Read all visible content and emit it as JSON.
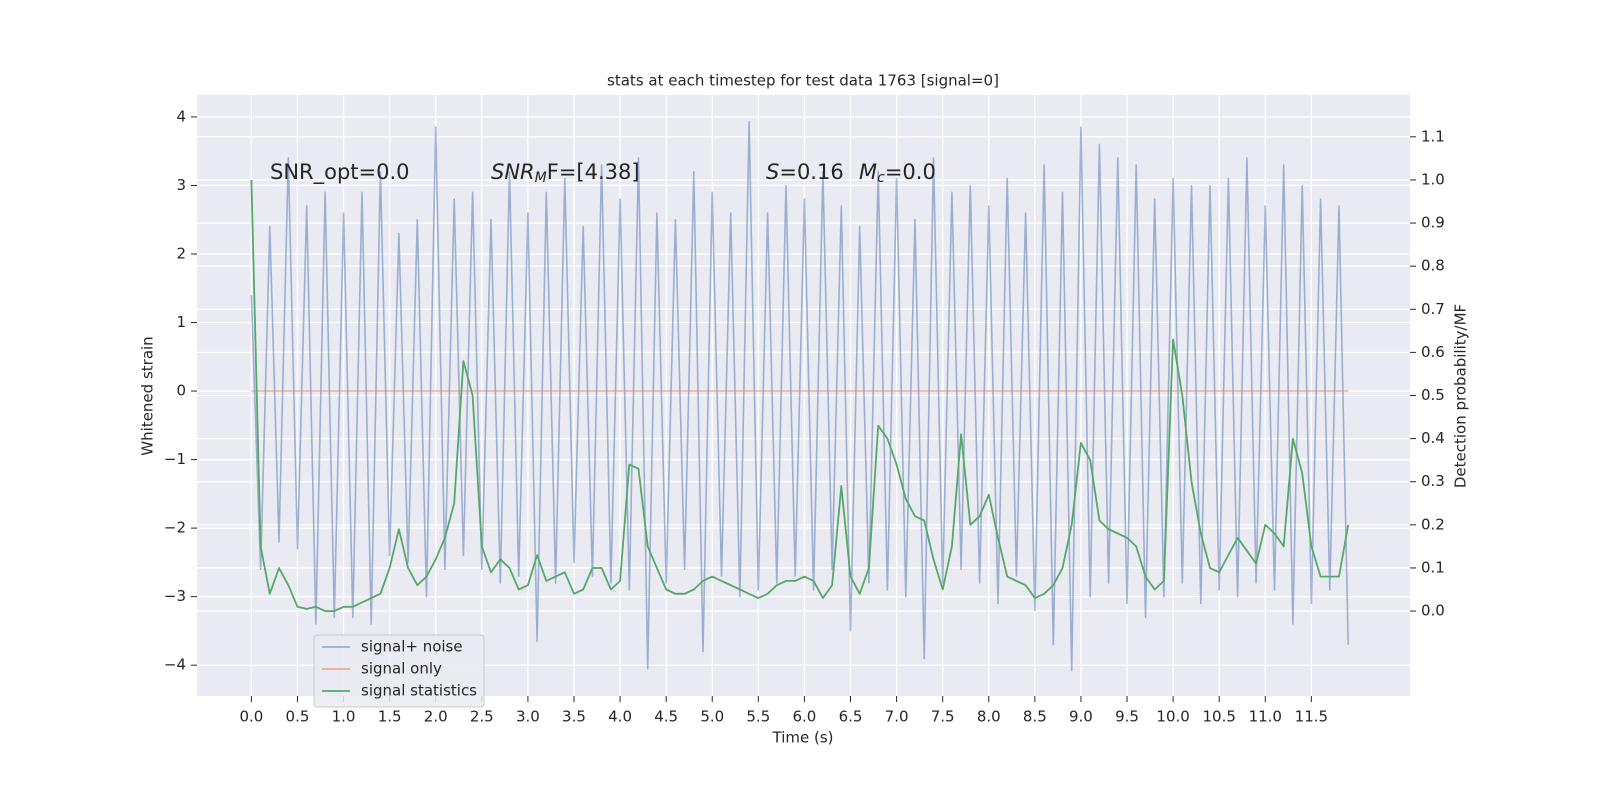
{
  "chart_data": {
    "type": "line",
    "title": "stats at each timestep for test data 1763 [signal=0]",
    "x_label": "Time (s)",
    "y_label": "Whitened strain",
    "y2_label": "Detection probability/MF",
    "annotations": [
      {
        "text": "SNR_opt=0.0"
      },
      {
        "italic": "SNR",
        "sub": "M",
        "text": "F=[4.38]"
      },
      {
        "italic": "S",
        "text": "=0.16"
      },
      {
        "italic": "M",
        "sub": "c",
        "text": "=0.0"
      }
    ],
    "grid": true,
    "legend": "lower left",
    "xlim": [
      -0.59,
      12.57
    ],
    "ylim": [
      -4.45,
      4.32
    ],
    "y2lim": [
      -0.197,
      1.197
    ],
    "xticks": [
      {
        "value": 0,
        "label": "0.0"
      },
      0.5,
      {
        "value": 1,
        "label": "1.0"
      },
      1.5,
      {
        "value": 2,
        "label": "2.0"
      },
      2.5,
      {
        "value": 3,
        "label": "3.0"
      },
      3.5,
      {
        "value": 4,
        "label": "4.0"
      },
      4.5,
      {
        "value": 5,
        "label": "5.0"
      },
      5.5,
      {
        "value": 6,
        "label": "6.0"
      },
      6.5,
      {
        "value": 7,
        "label": "7.0"
      },
      7.5,
      {
        "value": 8,
        "label": "8.0"
      },
      8.5,
      {
        "value": 9,
        "label": "9.0"
      },
      9.5,
      {
        "value": 10,
        "label": "10.0"
      },
      10.5,
      {
        "value": 11,
        "label": "11.0"
      },
      11.5
    ],
    "yticks": [
      {
        "value": -4,
        "label": "−4"
      },
      {
        "value": -3,
        "label": "−3"
      },
      {
        "value": -2,
        "label": "−2"
      },
      {
        "value": -1,
        "label": "−1"
      },
      0,
      1,
      2,
      3,
      4
    ],
    "y2ticks": [
      {
        "value": 0,
        "label": "0.0"
      },
      0.1,
      0.2,
      0.3,
      0.4,
      0.5,
      0.6,
      0.7,
      0.8,
      0.9,
      {
        "value": 1,
        "label": "1.0"
      },
      1.1
    ],
    "x": [
      0.0,
      0.1,
      0.2,
      0.3,
      0.4,
      0.5,
      0.6,
      0.7,
      0.8,
      0.9,
      1.0,
      1.1,
      1.2,
      1.3,
      1.4,
      1.5,
      1.6,
      1.7,
      1.8,
      1.9,
      2.0,
      2.1,
      2.2,
      2.3,
      2.4,
      2.5,
      2.6,
      2.7,
      2.8,
      2.9,
      3.0,
      3.1,
      3.2,
      3.3,
      3.4,
      3.5,
      3.6,
      3.7,
      3.8,
      3.9,
      4.0,
      4.1,
      4.2,
      4.3,
      4.4,
      4.5,
      4.6,
      4.7,
      4.8,
      4.9,
      5.0,
      5.1,
      5.2,
      5.3,
      5.4,
      5.5,
      5.6,
      5.7,
      5.8,
      5.9,
      6.0,
      6.1,
      6.2,
      6.3,
      6.4,
      6.5,
      6.6,
      6.7,
      6.8,
      6.9,
      7.0,
      7.1,
      7.2,
      7.3,
      7.4,
      7.5,
      7.6,
      7.7,
      7.8,
      7.9,
      8.0,
      8.1,
      8.2,
      8.3,
      8.4,
      8.5,
      8.6,
      8.7,
      8.8,
      8.9,
      9.0,
      9.1,
      9.2,
      9.3,
      9.4,
      9.5,
      9.6,
      9.7,
      9.8,
      9.9,
      10.0,
      10.1,
      10.2,
      10.3,
      10.4,
      10.5,
      10.6,
      10.7,
      10.8,
      10.9,
      11.0,
      11.1,
      11.2,
      11.3,
      11.4,
      11.5,
      11.6,
      11.7,
      11.8,
      11.9
    ],
    "series": [
      {
        "name": "signal+ noise",
        "color": "#4c72b0",
        "values": [
          1.4,
          -2.6,
          2.4,
          -2.2,
          3.4,
          -2.3,
          2.7,
          -3.4,
          2.9,
          -3.3,
          2.6,
          -3.3,
          2.9,
          -3.4,
          3.2,
          -2.4,
          2.3,
          -2.5,
          2.5,
          -3.0,
          3.85,
          -2.6,
          2.8,
          -2.4,
          2.9,
          -2.6,
          2.5,
          -2.8,
          3.2,
          -2.7,
          2.6,
          -3.65,
          2.9,
          -2.8,
          3.1,
          -2.5,
          2.4,
          -2.7,
          3.3,
          -2.8,
          2.8,
          -2.9,
          3.4,
          -4.05,
          2.6,
          -2.8,
          2.5,
          -2.6,
          3.2,
          -3.8,
          2.9,
          -2.7,
          2.6,
          -3.0,
          3.93,
          -2.9,
          2.6,
          -2.8,
          3.0,
          -2.7,
          2.8,
          -2.9,
          3.2,
          -2.6,
          2.7,
          -3.5,
          2.4,
          -2.8,
          3.2,
          -2.9,
          3.1,
          -3.0,
          2.5,
          -3.9,
          3.4,
          -2.8,
          2.9,
          -2.6,
          3.0,
          -2.8,
          2.7,
          -3.1,
          3.1,
          -2.7,
          2.6,
          -3.2,
          3.3,
          -3.7,
          2.9,
          -4.08,
          3.85,
          -3.0,
          3.6,
          -2.8,
          3.4,
          -3.1,
          3.3,
          -3.3,
          2.8,
          -3.0,
          3.1,
          -2.8,
          3.0,
          -3.1,
          3.0,
          -2.9,
          3.1,
          -3.0,
          3.4,
          -2.8,
          2.7,
          -2.9,
          3.3,
          -3.4,
          3.0,
          -3.1,
          2.8,
          -2.9,
          2.7,
          -3.7
        ]
      },
      {
        "name": "signal only",
        "color": "#dd8452",
        "values": [
          0,
          0,
          0,
          0,
          0,
          0,
          0,
          0,
          0,
          0,
          0,
          0,
          0,
          0,
          0,
          0,
          0,
          0,
          0,
          0,
          0,
          0,
          0,
          0,
          0,
          0,
          0,
          0,
          0,
          0,
          0,
          0,
          0,
          0,
          0,
          0,
          0,
          0,
          0,
          0,
          0,
          0,
          0,
          0,
          0,
          0,
          0,
          0,
          0,
          0,
          0,
          0,
          0,
          0,
          0,
          0,
          0,
          0,
          0,
          0,
          0,
          0,
          0,
          0,
          0,
          0,
          0,
          0,
          0,
          0,
          0,
          0,
          0,
          0,
          0,
          0,
          0,
          0,
          0,
          0,
          0,
          0,
          0,
          0,
          0,
          0,
          0,
          0,
          0,
          0,
          0,
          0,
          0,
          0,
          0,
          0,
          0,
          0,
          0,
          0,
          0,
          0,
          0,
          0,
          0,
          0,
          0,
          0,
          0,
          0,
          0,
          0,
          0,
          0,
          0,
          0,
          0,
          0,
          0,
          0
        ]
      },
      {
        "name": "signal statistics",
        "color": "#55a868",
        "axis": "y2",
        "values": [
          1.0,
          0.15,
          0.04,
          0.1,
          0.06,
          0.01,
          0.005,
          0.01,
          0.0,
          0.0,
          0.01,
          0.01,
          0.02,
          0.03,
          0.04,
          0.1,
          0.19,
          0.1,
          0.06,
          0.08,
          0.12,
          0.17,
          0.25,
          0.58,
          0.5,
          0.15,
          0.09,
          0.12,
          0.1,
          0.05,
          0.06,
          0.13,
          0.07,
          0.08,
          0.09,
          0.04,
          0.05,
          0.1,
          0.1,
          0.05,
          0.07,
          0.34,
          0.33,
          0.15,
          0.1,
          0.05,
          0.04,
          0.04,
          0.05,
          0.07,
          0.08,
          0.07,
          0.06,
          0.05,
          0.04,
          0.03,
          0.04,
          0.06,
          0.07,
          0.07,
          0.08,
          0.07,
          0.03,
          0.06,
          0.29,
          0.08,
          0.04,
          0.1,
          0.43,
          0.4,
          0.34,
          0.26,
          0.22,
          0.21,
          0.12,
          0.05,
          0.15,
          0.41,
          0.2,
          0.22,
          0.27,
          0.17,
          0.08,
          0.07,
          0.06,
          0.03,
          0.04,
          0.06,
          0.1,
          0.2,
          0.39,
          0.35,
          0.21,
          0.19,
          0.18,
          0.17,
          0.15,
          0.08,
          0.05,
          0.07,
          0.63,
          0.5,
          0.3,
          0.18,
          0.1,
          0.09,
          0.13,
          0.17,
          0.14,
          0.11,
          0.2,
          0.18,
          0.15,
          0.4,
          0.32,
          0.15,
          0.08,
          0.08,
          0.08,
          0.2
        ]
      }
    ]
  }
}
